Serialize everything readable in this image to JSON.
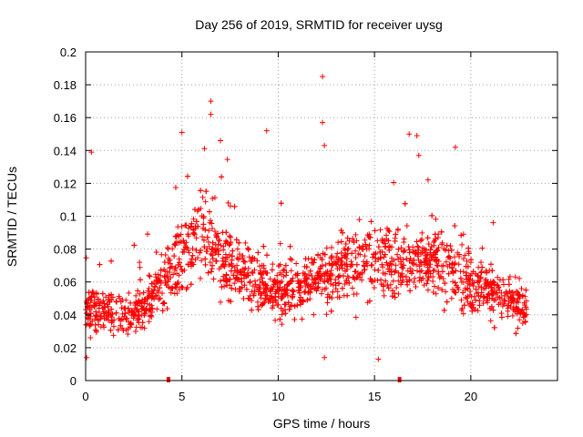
{
  "chart_data": {
    "type": "scatter",
    "title": "Day 256 of 2019, SRMTID for receiver uysg",
    "xlabel": "GPS time / hours",
    "ylabel": "SRMTID / TECUs",
    "xlim": [
      0,
      24.5
    ],
    "ylim": [
      0,
      0.2
    ],
    "xticks": [
      0,
      5,
      10,
      15,
      20
    ],
    "xtick_labels": [
      "0",
      "5",
      "10",
      "15",
      "20"
    ],
    "yticks": [
      0,
      0.02,
      0.04,
      0.06,
      0.08,
      0.1,
      0.12,
      0.14,
      0.16,
      0.18,
      0.2
    ],
    "ytick_labels": [
      "0",
      "0.02",
      "0.04",
      "0.06",
      "0.08",
      "0.1",
      "0.12",
      "0.14",
      "0.16",
      "0.18",
      "0.2"
    ],
    "grid": true,
    "marker": "+",
    "color": "#ff0000",
    "x_extent": [
      0,
      22.9
    ],
    "n_points": 2400,
    "trend": [
      {
        "x": 0,
        "y": 0.045
      },
      {
        "x": 1,
        "y": 0.042
      },
      {
        "x": 2,
        "y": 0.038
      },
      {
        "x": 3,
        "y": 0.045
      },
      {
        "x": 4,
        "y": 0.06
      },
      {
        "x": 5,
        "y": 0.075
      },
      {
        "x": 6,
        "y": 0.09
      },
      {
        "x": 7,
        "y": 0.075
      },
      {
        "x": 8,
        "y": 0.065
      },
      {
        "x": 9,
        "y": 0.06
      },
      {
        "x": 10,
        "y": 0.055
      },
      {
        "x": 11,
        "y": 0.055
      },
      {
        "x": 12,
        "y": 0.06
      },
      {
        "x": 13,
        "y": 0.065
      },
      {
        "x": 14,
        "y": 0.07
      },
      {
        "x": 15,
        "y": 0.075
      },
      {
        "x": 16,
        "y": 0.07
      },
      {
        "x": 17,
        "y": 0.072
      },
      {
        "x": 18,
        "y": 0.075
      },
      {
        "x": 19,
        "y": 0.065
      },
      {
        "x": 20,
        "y": 0.058
      },
      {
        "x": 21,
        "y": 0.055
      },
      {
        "x": 22,
        "y": 0.048
      },
      {
        "x": 23,
        "y": 0.042
      }
    ],
    "outliers": [
      {
        "x": 12.3,
        "y": 0.185
      },
      {
        "x": 6.5,
        "y": 0.17
      },
      {
        "x": 12.3,
        "y": 0.157
      },
      {
        "x": 6.5,
        "y": 0.162
      },
      {
        "x": 9.4,
        "y": 0.152
      },
      {
        "x": 16.8,
        "y": 0.15
      },
      {
        "x": 17.2,
        "y": 0.149
      },
      {
        "x": 5.0,
        "y": 0.151
      },
      {
        "x": 19.2,
        "y": 0.142
      },
      {
        "x": 0.3,
        "y": 0.139
      },
      {
        "x": 7.0,
        "y": 0.146
      },
      {
        "x": 12.4,
        "y": 0.143
      },
      {
        "x": 17.3,
        "y": 0.137
      },
      {
        "x": 12.4,
        "y": 0.014
      },
      {
        "x": 15.2,
        "y": 0.013
      },
      {
        "x": 0.05,
        "y": 0.014
      }
    ],
    "markers_on_axis": [
      {
        "x": 4.3,
        "y": 0
      },
      {
        "x": 16.3,
        "y": 0
      }
    ]
  }
}
